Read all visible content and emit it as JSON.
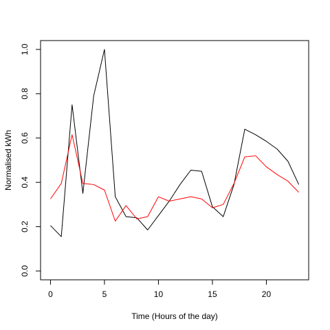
{
  "chart_data": {
    "type": "line",
    "title": "",
    "xlabel": "Time (Hours of the day)",
    "ylabel": "Normalised kWh",
    "xlim": [
      -0.92,
      23.92
    ],
    "ylim": [
      -0.04,
      1.04
    ],
    "xticks": [
      0,
      5,
      10,
      15,
      20
    ],
    "yticks": [
      0.0,
      0.2,
      0.4,
      0.6,
      0.8,
      1.0
    ],
    "xtick_labels": [
      "0",
      "5",
      "10",
      "15",
      "20"
    ],
    "ytick_labels": [
      "0.0",
      "0.2",
      "0.4",
      "0.6",
      "0.8",
      "1.0"
    ],
    "grid": false,
    "legend": "none",
    "x": [
      0,
      1,
      2,
      3,
      4,
      5,
      6,
      7,
      8,
      9,
      10,
      11,
      12,
      13,
      14,
      15,
      16,
      17,
      18,
      19,
      20,
      21,
      22,
      23
    ],
    "series": [
      {
        "color": "#000000",
        "values": [
          0.205,
          0.155,
          0.75,
          0.35,
          0.79,
          1.0,
          0.335,
          0.245,
          0.24,
          0.185,
          0.25,
          0.315,
          0.39,
          0.455,
          0.45,
          0.29,
          0.245,
          0.39,
          0.64,
          0.615,
          0.585,
          0.55,
          0.495,
          0.39
        ]
      },
      {
        "color": "#ff0000",
        "values": [
          0.325,
          0.395,
          0.615,
          0.395,
          0.39,
          0.365,
          0.225,
          0.295,
          0.235,
          0.245,
          0.335,
          0.315,
          0.325,
          0.335,
          0.325,
          0.285,
          0.3,
          0.395,
          0.515,
          0.52,
          0.47,
          0.435,
          0.405,
          0.355
        ]
      }
    ]
  }
}
